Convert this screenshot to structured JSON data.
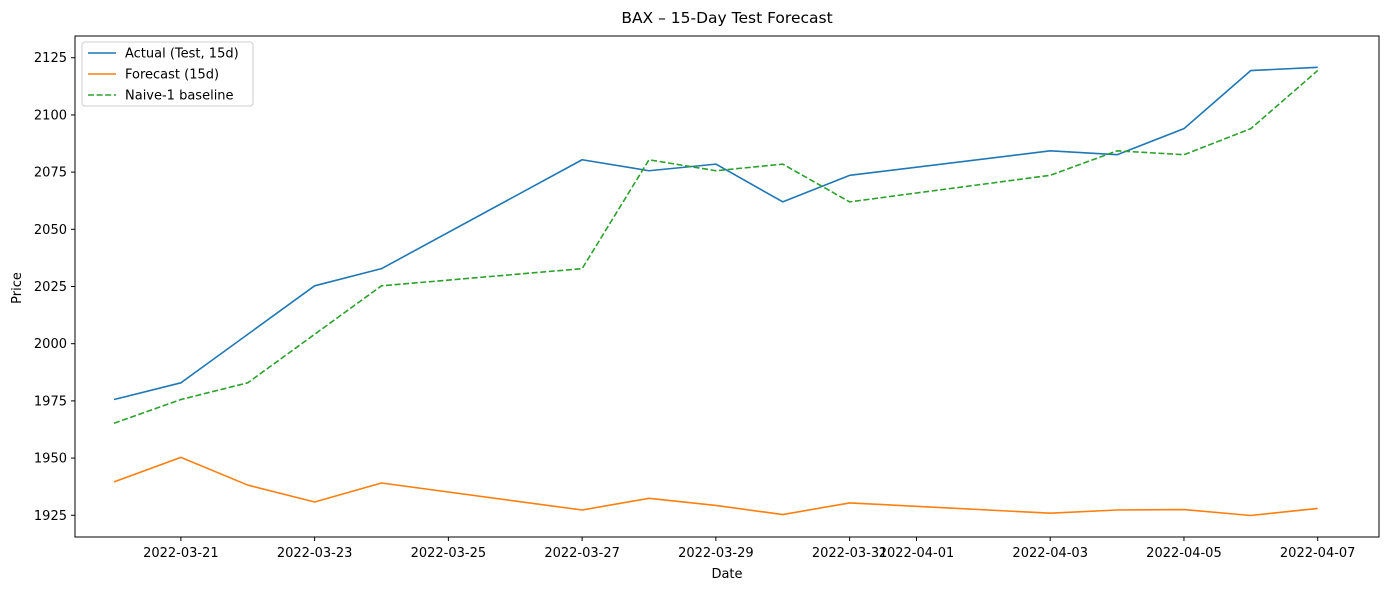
{
  "chart_data": {
    "type": "line",
    "title": "BAX – 15-Day Test Forecast",
    "xlabel": "Date",
    "ylabel": "Price",
    "x_range": [
      "2022-03-19T10:00",
      "2022-04-07T22:00"
    ],
    "ylim": [
      1915.5,
      2134.5
    ],
    "x_ticks": [
      "2022-03-21",
      "2022-03-23",
      "2022-03-25",
      "2022-03-27",
      "2022-03-29",
      "2022-03-31",
      "2022-04-01",
      "2022-04-03",
      "2022-04-05",
      "2022-04-07"
    ],
    "y_ticks": [
      1925,
      1950,
      1975,
      2000,
      2025,
      2050,
      2075,
      2100,
      2125
    ],
    "grid": false,
    "legend_position": "top-left",
    "series": [
      {
        "name": "Actual (Test, 15d)",
        "color": "#1f77b4",
        "style": "solid",
        "x": [
          "2022-03-20",
          "2022-03-21",
          "2022-03-23",
          "2022-03-24",
          "2022-03-27",
          "2022-03-28",
          "2022-03-29",
          "2022-03-30",
          "2022-03-31",
          "2022-04-03",
          "2022-04-04",
          "2022-04-05",
          "2022-04-06",
          "2022-04-07"
        ],
        "values": [
          1975.6,
          1982.9,
          2025.3,
          2032.8,
          2080.4,
          2075.6,
          2078.5,
          2062.0,
          2073.6,
          2084.3,
          2082.6,
          2094.0,
          2119.4,
          2120.8
        ]
      },
      {
        "name": "Forecast (15d)",
        "color": "#ff7f0e",
        "style": "solid",
        "x": [
          "2022-03-20",
          "2022-03-21",
          "2022-03-22",
          "2022-03-23",
          "2022-03-24",
          "2022-03-27",
          "2022-03-28",
          "2022-03-29",
          "2022-03-30",
          "2022-03-31",
          "2022-04-03",
          "2022-04-04",
          "2022-04-05",
          "2022-04-06",
          "2022-04-07"
        ],
        "values": [
          1939.6,
          1950.3,
          1938.2,
          1930.8,
          1939.1,
          1927.3,
          1932.4,
          1929.3,
          1925.3,
          1930.4,
          1925.9,
          1927.3,
          1927.5,
          1924.9,
          1928.0
        ]
      },
      {
        "name": "Naive-1 baseline",
        "color": "#2ca02c",
        "style": "dashed",
        "x": [
          "2022-03-20",
          "2022-03-21",
          "2022-03-22",
          "2022-03-23",
          "2022-03-24",
          "2022-03-27",
          "2022-03-28",
          "2022-03-29",
          "2022-03-30",
          "2022-03-31",
          "2022-04-03",
          "2022-04-04",
          "2022-04-05",
          "2022-04-06",
          "2022-04-07"
        ],
        "values": [
          1965.2,
          1975.6,
          1982.9,
          2004.1,
          2025.3,
          2032.8,
          2080.4,
          2075.6,
          2078.5,
          2062.0,
          2073.6,
          2084.3,
          2082.6,
          2094.0,
          2119.4
        ]
      }
    ]
  }
}
